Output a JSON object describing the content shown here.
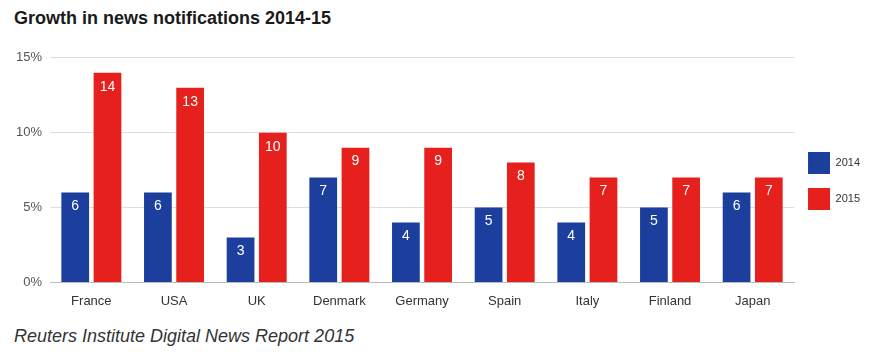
{
  "chart_data": {
    "type": "bar",
    "title": "Growth in news notifications 2014-15",
    "source": "Reuters Institute Digital News Report 2015",
    "categories": [
      "France",
      "USA",
      "UK",
      "Denmark",
      "Germany",
      "Spain",
      "Italy",
      "Finland",
      "Japan"
    ],
    "series": [
      {
        "name": "2014",
        "color": "#1c3f9e",
        "values": [
          6,
          6,
          3,
          7,
          4,
          5,
          4,
          5,
          6
        ]
      },
      {
        "name": "2015",
        "color": "#e5201d",
        "values": [
          14,
          13,
          10,
          9,
          9,
          8,
          7,
          7,
          7
        ]
      }
    ],
    "ylim": [
      0,
      15
    ],
    "yticks": [
      {
        "value": 0,
        "label": "0%"
      },
      {
        "value": 5,
        "label": "5%"
      },
      {
        "value": 10,
        "label": "10%"
      },
      {
        "value": 15,
        "label": "15%"
      }
    ],
    "grid": true,
    "legend": "right",
    "data_labels": true
  }
}
